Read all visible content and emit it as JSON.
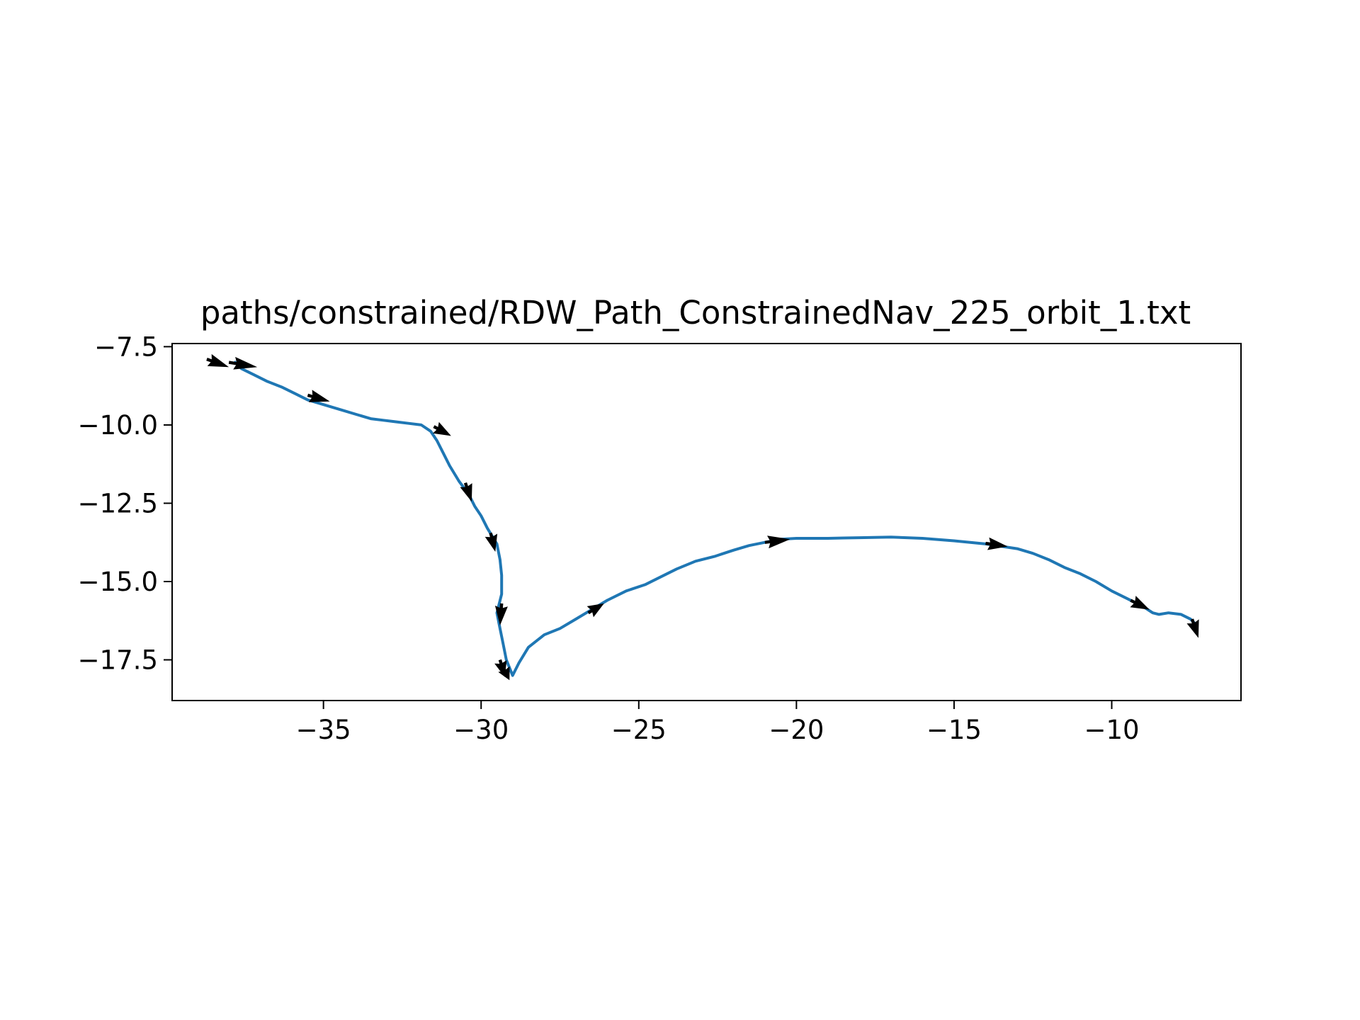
{
  "chart_data": {
    "type": "line",
    "title": "paths/constrained/RDW_Path_ConstrainedNav_225_orbit_1.txt",
    "xlabel": "",
    "ylabel": "",
    "xlim": [
      -39.8,
      -5.9
    ],
    "ylim": [
      -18.8,
      -7.4
    ],
    "x_ticks": [
      -35,
      -30,
      -25,
      -20,
      -15,
      -10
    ],
    "x_tick_labels": [
      "−35",
      "−30",
      "−25",
      "−20",
      "−15",
      "−10"
    ],
    "y_ticks": [
      -7.5,
      -10.0,
      -12.5,
      -15.0,
      -17.5
    ],
    "y_tick_labels": [
      "−7.5",
      "−10.0",
      "−12.5",
      "−15.0",
      "−17.5"
    ],
    "grid": false,
    "colors": {
      "path": "#1f77b4",
      "arrows": "#000000",
      "axes": "#000000"
    },
    "series": [
      {
        "x": [
          -37.8,
          -37.6,
          -37.2,
          -36.8,
          -36.3,
          -35.9,
          -35.5,
          -35.0,
          -34.5,
          -34.0,
          -33.5,
          -33.1,
          -32.7,
          -32.3,
          -31.9,
          -31.6,
          -31.4,
          -31.2,
          -31.0,
          -30.7,
          -30.4,
          -30.2,
          -30.0,
          -29.8,
          -29.5,
          -29.4,
          -29.35,
          -29.35,
          -29.5,
          -29.4,
          -29.3,
          -29.2,
          -29.0,
          -28.8,
          -28.5,
          -28.0,
          -27.5,
          -27.0,
          -26.5,
          -26.0,
          -25.4,
          -24.8,
          -24.4,
          -23.8,
          -23.2,
          -22.6,
          -22.0,
          -21.5,
          -21.0,
          -20.5,
          -20.0,
          -19.5,
          -19.0,
          -18.5,
          -18.0,
          -17.0,
          -16.0,
          -15.0,
          -14.0,
          -13.0,
          -12.5,
          -12.0,
          -11.5,
          -11.0,
          -10.5,
          -10.0,
          -9.5,
          -9.0,
          -8.7,
          -8.5,
          -8.2,
          -7.8,
          -7.5,
          -7.3
        ],
        "y": [
          -8.0,
          -8.2,
          -8.4,
          -8.6,
          -8.8,
          -9.0,
          -9.2,
          -9.35,
          -9.5,
          -9.65,
          -9.8,
          -9.85,
          -9.9,
          -9.95,
          -10.0,
          -10.2,
          -10.5,
          -10.9,
          -11.3,
          -11.8,
          -12.2,
          -12.6,
          -12.9,
          -13.3,
          -13.8,
          -14.3,
          -14.8,
          -15.4,
          -16.0,
          -16.5,
          -17.0,
          -17.5,
          -18.0,
          -17.6,
          -17.1,
          -16.7,
          -16.5,
          -16.2,
          -15.9,
          -15.6,
          -15.3,
          -15.1,
          -14.9,
          -14.6,
          -14.35,
          -14.2,
          -14.0,
          -13.85,
          -13.75,
          -13.65,
          -13.62,
          -13.62,
          -13.62,
          -13.61,
          -13.6,
          -13.58,
          -13.62,
          -13.7,
          -13.8,
          -13.95,
          -14.1,
          -14.3,
          -14.55,
          -14.75,
          -15.0,
          -15.3,
          -15.55,
          -15.8,
          -16.0,
          -16.05,
          -16.0,
          -16.05,
          -16.2,
          -16.4
        ]
      }
    ],
    "arrows": [
      {
        "x": -38.7,
        "y": -7.9,
        "dx": 0.7,
        "dy": -0.25
      },
      {
        "x": -38.0,
        "y": -8.0,
        "dx": 0.9,
        "dy": -0.15
      },
      {
        "x": -35.5,
        "y": -9.05,
        "dx": 0.7,
        "dy": -0.2
      },
      {
        "x": -31.5,
        "y": -10.05,
        "dx": 0.55,
        "dy": -0.3
      },
      {
        "x": -30.5,
        "y": -11.85,
        "dx": 0.2,
        "dy": -0.6
      },
      {
        "x": -29.7,
        "y": -13.45,
        "dx": 0.15,
        "dy": -0.6
      },
      {
        "x": -29.35,
        "y": -15.7,
        "dx": -0.05,
        "dy": -0.7
      },
      {
        "x": -29.4,
        "y": -17.5,
        "dx": 0.15,
        "dy": -0.55
      },
      {
        "x": -29.3,
        "y": -17.75,
        "dx": 0.2,
        "dy": -0.4
      },
      {
        "x": -26.6,
        "y": -16.0,
        "dx": 0.5,
        "dy": 0.3
      },
      {
        "x": -21.0,
        "y": -13.75,
        "dx": 0.8,
        "dy": 0.1
      },
      {
        "x": -14.0,
        "y": -13.78,
        "dx": 0.7,
        "dy": -0.1
      },
      {
        "x": -9.4,
        "y": -15.6,
        "dx": 0.6,
        "dy": -0.3
      },
      {
        "x": -7.45,
        "y": -16.2,
        "dx": 0.2,
        "dy": -0.6
      }
    ]
  }
}
